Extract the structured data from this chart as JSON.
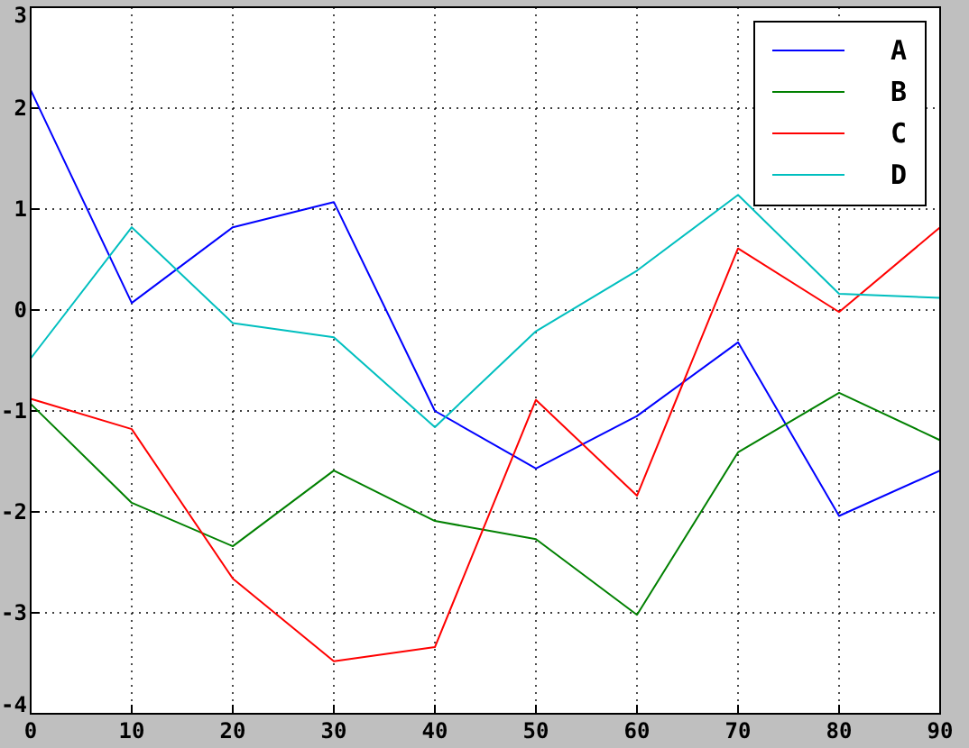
{
  "chart_data": {
    "type": "line",
    "x": [
      0,
      10,
      20,
      30,
      40,
      50,
      60,
      70,
      80,
      90
    ],
    "series": [
      {
        "name": "A",
        "color": "#0000ff",
        "values": [
          2.18,
          0.07,
          0.82,
          1.07,
          -1.0,
          -1.57,
          -1.05,
          -0.32,
          -2.04,
          -1.59
        ]
      },
      {
        "name": "B",
        "color": "#008000",
        "values": [
          -0.93,
          -1.91,
          -2.34,
          -1.59,
          -2.09,
          -2.27,
          -3.02,
          -1.41,
          -0.82,
          -1.29
        ]
      },
      {
        "name": "C",
        "color": "#ff0000",
        "values": [
          -0.88,
          -1.18,
          -2.66,
          -3.48,
          -3.34,
          -0.89,
          -1.84,
          0.61,
          -0.02,
          0.82
        ]
      },
      {
        "name": "D",
        "color": "#00bfbf",
        "values": [
          -0.48,
          0.82,
          -0.13,
          -0.27,
          -1.16,
          -0.21,
          0.39,
          1.14,
          0.16,
          0.12
        ]
      }
    ],
    "xlim": [
      0,
      90
    ],
    "xticks": [
      0,
      10,
      20,
      30,
      40,
      50,
      60,
      70,
      80,
      90
    ],
    "ylim": [
      -4,
      3
    ],
    "yticks": [
      -4,
      -3,
      -2,
      -1,
      0,
      1,
      2,
      3
    ],
    "grid": true,
    "legend": "top right",
    "marker": "none",
    "line_style": "solid"
  }
}
